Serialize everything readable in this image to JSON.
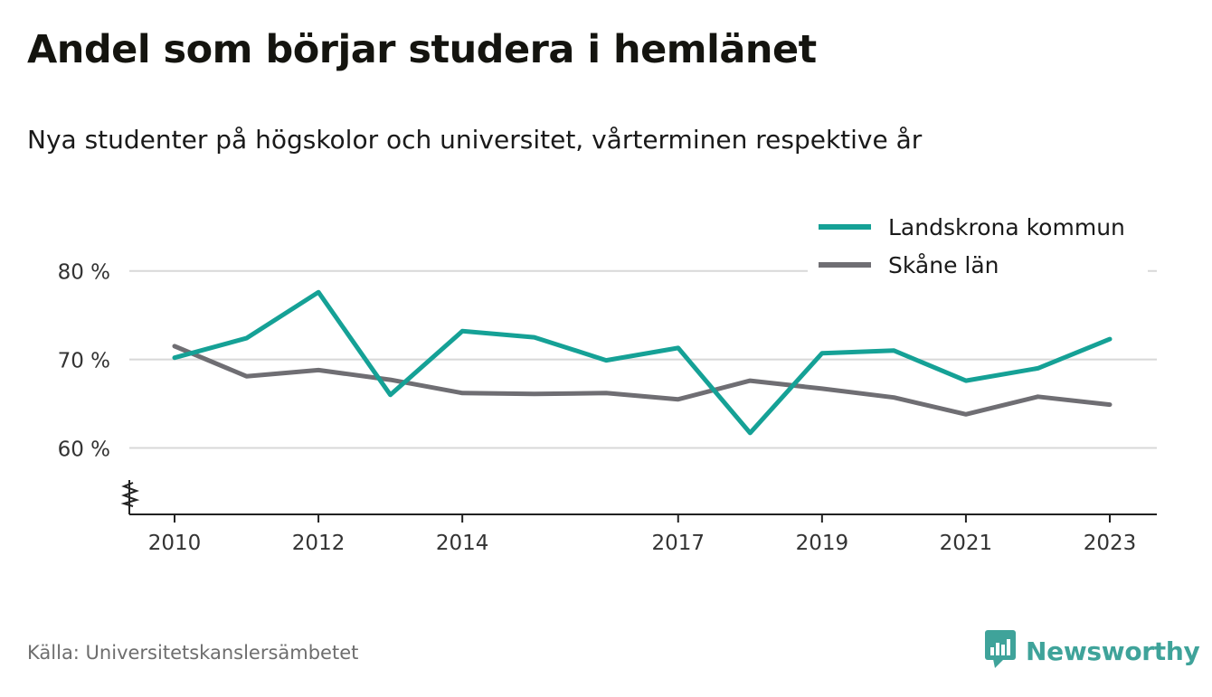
{
  "title": "Andel som börjar studera i hemlänet",
  "subtitle": "Nya studenter på högskolor och universitet, vårterminen respektive år",
  "source": "Källa: Universitetskanslersämbetet",
  "brand": {
    "name": "Newsworthy",
    "icon": "newsworthy-logo-icon",
    "color": "#3fa39a"
  },
  "chart_data": {
    "type": "line",
    "x": [
      2010,
      2011,
      2012,
      2013,
      2014,
      2015,
      2016,
      2017,
      2018,
      2019,
      2020,
      2021,
      2022,
      2023
    ],
    "x_tick_labels": [
      "2010",
      "2012",
      "2014",
      "2017",
      "2019",
      "2021",
      "2023"
    ],
    "y_tick_labels": [
      "80 %",
      "70 %",
      "60 %"
    ],
    "y_ticks": [
      80,
      70,
      60
    ],
    "ylim": [
      52.5,
      81.5
    ],
    "grid": true,
    "axis_break": true,
    "legend_position": "top-right",
    "series": [
      {
        "name": "Landskrona kommun",
        "color": "#15a196",
        "values": [
          70.2,
          72.4,
          77.6,
          66.0,
          73.2,
          72.5,
          69.9,
          71.3,
          61.7,
          70.7,
          71.0,
          67.6,
          69.0,
          72.3
        ]
      },
      {
        "name": "Skåne län",
        "color": "#6f6e73",
        "values": [
          71.5,
          68.1,
          68.8,
          67.7,
          66.2,
          66.1,
          66.2,
          65.5,
          67.6,
          66.7,
          65.7,
          63.8,
          65.8,
          64.9
        ]
      }
    ]
  }
}
